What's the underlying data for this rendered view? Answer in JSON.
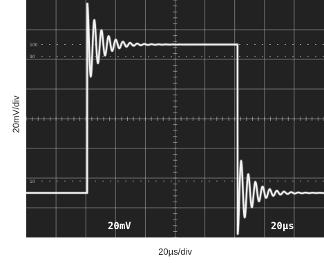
{
  "chart_data": {
    "type": "line",
    "xlabel": "20µs/div",
    "ylabel": "20mV/div",
    "grid": true,
    "x_divisions": 10,
    "y_divisions": 8,
    "xlim": [
      0,
      10
    ],
    "ylim": [
      0,
      8
    ],
    "x_units": "divisions",
    "y_units": "divisions",
    "screen_readouts": {
      "volts_per_div": "20mV",
      "time_per_div": "20µs"
    },
    "reference_marks": {
      "left": [
        {
          "label": "100",
          "y": 6.5
        },
        {
          "label": "90",
          "y": 6.1
        },
        {
          "label": "10",
          "y": 1.9
        }
      ]
    },
    "series": [
      {
        "waveform": "pulse_response_with_ringing",
        "low_level": 1.5,
        "high_level": 6.5,
        "rise_time": 2.05,
        "fall_time": 7.1,
        "ringing_amplitude": 1.4,
        "ringing_period": 0.24,
        "ringing_decay": 0.45,
        "trace_color": "#f2f2f2"
      }
    ],
    "colors": {
      "screen_background": "#222222",
      "graticule": "#b8b8b8",
      "trace": "#f2f2f2",
      "readout_text": "#ffffff"
    }
  }
}
